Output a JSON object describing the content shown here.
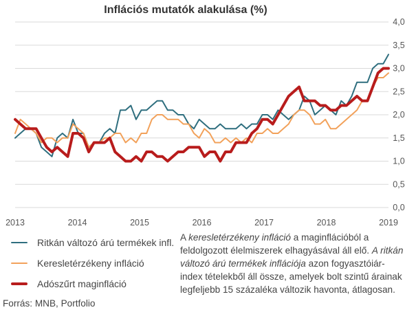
{
  "chart_data": {
    "type": "line",
    "title": "Inflációs mutatók alakulása (%)",
    "ylim": [
      0,
      4
    ],
    "yticks": [
      "0,0",
      "0,5",
      "1,0",
      "1,5",
      "2,0",
      "2,5",
      "3,0",
      "3,5",
      "4,0"
    ],
    "ytick_values": [
      0,
      0.5,
      1,
      1.5,
      2,
      2.5,
      3,
      3.5,
      4
    ],
    "xticks": [
      "2013",
      "2014",
      "2015",
      "2016",
      "2017",
      "2018",
      "2019"
    ],
    "xtick_positions": [
      0,
      12,
      24,
      36,
      48,
      60,
      72
    ],
    "xlim": [
      0,
      72
    ],
    "grid": true,
    "series": [
      {
        "name": "Ritkán változó árú termékek infl.",
        "color": "#2e6e7e",
        "width": 2,
        "values": [
          1.5,
          1.6,
          1.7,
          1.7,
          1.6,
          1.3,
          1.2,
          1.1,
          1.5,
          1.6,
          1.5,
          1.9,
          1.6,
          1.6,
          1.3,
          1.4,
          1.4,
          1.6,
          1.7,
          1.6,
          2.1,
          2.1,
          2.2,
          1.9,
          2.1,
          2.1,
          2.2,
          2.3,
          2.3,
          2.1,
          2.1,
          2.0,
          2.0,
          1.8,
          1.7,
          1.9,
          1.8,
          1.7,
          1.7,
          1.8,
          1.7,
          1.7,
          1.7,
          1.8,
          1.7,
          1.8,
          1.8,
          2.0,
          2.0,
          1.9,
          2.1,
          2.0,
          1.9,
          2.0,
          2.1,
          2.4,
          2.3,
          2.0,
          2.1,
          2.2,
          2.1,
          2.0,
          2.3,
          2.2,
          2.4,
          2.7,
          2.7,
          2.7,
          3.0,
          3.1,
          3.1,
          3.3
        ]
      },
      {
        "name": "Keresletérzékeny infláció",
        "color": "#f2a15a",
        "width": 2,
        "values": [
          1.6,
          1.9,
          1.8,
          1.7,
          1.6,
          1.4,
          1.5,
          1.5,
          1.4,
          1.5,
          1.5,
          1.8,
          1.7,
          1.6,
          1.3,
          1.4,
          1.4,
          1.5,
          1.5,
          1.6,
          1.6,
          1.4,
          1.5,
          1.4,
          1.6,
          1.6,
          1.9,
          2.0,
          2.0,
          1.9,
          1.9,
          1.9,
          1.8,
          1.8,
          1.6,
          1.5,
          1.7,
          1.6,
          1.4,
          1.4,
          1.5,
          1.4,
          1.5,
          1.4,
          1.5,
          1.4,
          1.6,
          1.6,
          1.7,
          1.6,
          1.6,
          1.7,
          1.8,
          2.0,
          2.1,
          2.1,
          2.0,
          1.8,
          1.8,
          1.9,
          1.7,
          1.7,
          1.8,
          1.9,
          2.0,
          2.1,
          2.3,
          2.3,
          2.6,
          2.8,
          2.8,
          2.9
        ]
      },
      {
        "name": "Adószűrt maginfláció",
        "color": "#b81c1c",
        "width": 4,
        "values": [
          1.9,
          1.8,
          1.7,
          1.7,
          1.7,
          1.5,
          1.3,
          1.2,
          1.3,
          1.2,
          1.1,
          1.6,
          1.6,
          1.5,
          1.2,
          1.4,
          1.4,
          1.4,
          1.5,
          1.2,
          1.1,
          1.0,
          1.0,
          1.1,
          1.0,
          1.2,
          1.2,
          1.1,
          1.1,
          1.0,
          1.1,
          1.2,
          1.2,
          1.3,
          1.3,
          1.3,
          1.1,
          1.2,
          1.2,
          1.0,
          1.2,
          1.2,
          1.4,
          1.4,
          1.4,
          1.6,
          1.7,
          1.9,
          1.9,
          1.8,
          2.0,
          2.2,
          2.4,
          2.5,
          2.6,
          2.3,
          2.3,
          2.3,
          2.2,
          2.2,
          2.1,
          2.1,
          2.2,
          2.2,
          2.3,
          2.4,
          2.3,
          2.3,
          2.6,
          2.9,
          3.0,
          3.0
        ]
      }
    ]
  },
  "note": {
    "part1": "A ",
    "em1": "keresletérzékeny infláció",
    "part2": " a maginflációból a feldolgozott élelmiszerek elhagyásával áll elő. ",
    "em2": "A ritkán változó árú termékek inflációja",
    "part3": " azon fogyasztóiár-index tételekből áll össze, amelyek bolt szintű árainak legfeljebb 15 százaléka változik havonta, átlagosan."
  },
  "source": "Forrás: MNB, Portfolio"
}
